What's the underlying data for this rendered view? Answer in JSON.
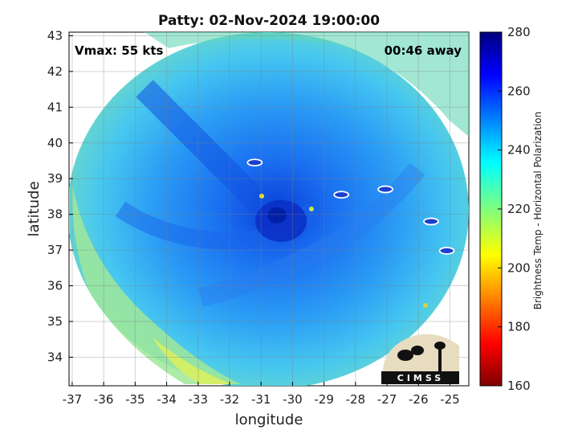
{
  "chart_data": {
    "type": "heatmap",
    "title": "Patty: 02-Nov-2024 19:00:00",
    "xlabel": "longitude",
    "ylabel": "latitude",
    "xlim": [
      -37.1,
      -24.4
    ],
    "ylim": [
      33.2,
      43.1
    ],
    "x_ticks": [
      -37,
      -36,
      -35,
      -34,
      -33,
      -32,
      -31,
      -30,
      -29,
      -28,
      -27,
      -26,
      -25
    ],
    "y_ticks": [
      34,
      35,
      36,
      37,
      38,
      39,
      40,
      41,
      42,
      43
    ],
    "grid": true,
    "annotations": {
      "left": "Vmax: 55 kts",
      "right": "00:46 away"
    },
    "colorbar": {
      "label": "Brightness Temp - Horizontal Polarization",
      "min": 160,
      "max": 280,
      "ticks": [
        160,
        180,
        200,
        220,
        240,
        260,
        280
      ],
      "colormap": "jet"
    },
    "swath_center": [
      -30.8,
      38.2
    ],
    "storm_center": [
      -30.5,
      37.8
    ],
    "islands": [
      {
        "name": "",
        "x": -31.2,
        "y": 39.45
      },
      {
        "name": "",
        "x": -28.45,
        "y": 38.55
      },
      {
        "name": "",
        "x": -27.05,
        "y": 38.7
      },
      {
        "name": "",
        "x": -25.6,
        "y": 37.8
      },
      {
        "name": "",
        "x": -25.1,
        "y": 36.98
      }
    ]
  },
  "logo": {
    "text": "CIMSS"
  }
}
